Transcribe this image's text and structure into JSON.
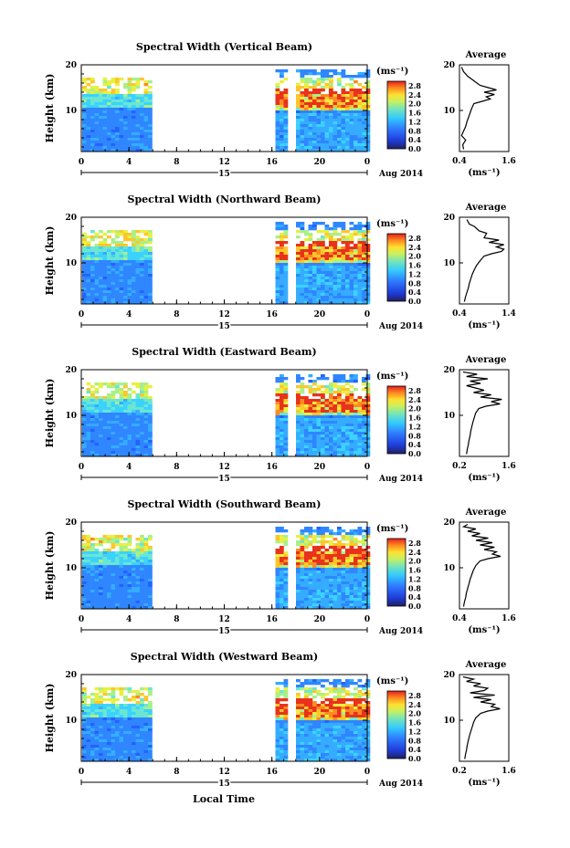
{
  "chart_data": {
    "type": "heatmap",
    "common": {
      "ylabel": "Height (km)",
      "y_ticks": [
        "20",
        "10"
      ],
      "x_ticks": [
        "0",
        "4",
        "8",
        "12",
        "16",
        "20",
        "0"
      ],
      "x_ticks_values": [
        0,
        4,
        8,
        12,
        16,
        20,
        24
      ],
      "xlim": [
        0,
        24
      ],
      "ylim": [
        1,
        20
      ],
      "date_day": "15",
      "date_month_year": "Aug 2014",
      "colorbar_unit": "(ms⁻¹)",
      "colorbar_ticks": [
        "2.8",
        "2.4",
        "2.0",
        "1.6",
        "1.2",
        "0.8",
        "0.4",
        "0.0"
      ],
      "colorbar_values": [
        2.8,
        2.4,
        2.0,
        1.6,
        1.2,
        0.8,
        0.4,
        0.0
      ],
      "profile_title": "Average",
      "profile_xlabel": "(ms⁻¹)",
      "data_gap_hours": [
        5.7,
        16.2
      ],
      "xlabel": "Local Time"
    },
    "panels": [
      {
        "title": "Spectral Width (Vertical Beam)",
        "profile_xticks": [
          "0.4",
          "1.6"
        ],
        "profile_xlim": [
          0.4,
          1.6
        ],
        "profile": [
          [
            1.5,
            0.5
          ],
          [
            2.5,
            0.48
          ],
          [
            3.5,
            0.55
          ],
          [
            4.5,
            0.45
          ],
          [
            5.5,
            0.5
          ],
          [
            6.5,
            0.55
          ],
          [
            7.5,
            0.58
          ],
          [
            8.5,
            0.62
          ],
          [
            9.5,
            0.66
          ],
          [
            10.5,
            0.7
          ],
          [
            11.5,
            0.75
          ],
          [
            12.0,
            0.95
          ],
          [
            12.5,
            1.15
          ],
          [
            13.0,
            1.05
          ],
          [
            13.5,
            1.25
          ],
          [
            14.0,
            1.0
          ],
          [
            14.5,
            1.3
          ],
          [
            15.0,
            1.1
          ],
          [
            15.5,
            0.9
          ],
          [
            16.5,
            0.75
          ],
          [
            17.5,
            0.6
          ],
          [
            18.5,
            0.5
          ],
          [
            19.5,
            0.45
          ]
        ]
      },
      {
        "title": "Spectral Width (Northward Beam)",
        "profile_xticks": [
          "0.4",
          "1.4"
        ],
        "profile_xlim": [
          0.4,
          1.4
        ],
        "profile": [
          [
            1.5,
            0.5
          ],
          [
            2.5,
            0.52
          ],
          [
            3.5,
            0.55
          ],
          [
            4.5,
            0.58
          ],
          [
            5.5,
            0.6
          ],
          [
            6.5,
            0.63
          ],
          [
            7.5,
            0.66
          ],
          [
            8.5,
            0.7
          ],
          [
            9.5,
            0.75
          ],
          [
            10.5,
            0.82
          ],
          [
            11.5,
            0.9
          ],
          [
            12.0,
            1.05
          ],
          [
            12.5,
            1.25
          ],
          [
            13.0,
            1.3
          ],
          [
            13.5,
            1.15
          ],
          [
            14.0,
            1.3
          ],
          [
            14.5,
            1.0
          ],
          [
            15.0,
            1.2
          ],
          [
            15.5,
            0.9
          ],
          [
            16.5,
            0.95
          ],
          [
            17.0,
            0.8
          ],
          [
            18.0,
            0.7
          ],
          [
            18.5,
            0.6
          ],
          [
            19.5,
            0.55
          ]
        ]
      },
      {
        "title": "Spectral Width (Eastward Beam)",
        "profile_xticks": [
          "0.2",
          "1.6"
        ],
        "profile_xlim": [
          0.2,
          1.6
        ],
        "profile": [
          [
            1.5,
            0.4
          ],
          [
            2.5,
            0.42
          ],
          [
            3.5,
            0.45
          ],
          [
            4.5,
            0.47
          ],
          [
            5.5,
            0.5
          ],
          [
            6.5,
            0.52
          ],
          [
            7.5,
            0.55
          ],
          [
            8.5,
            0.58
          ],
          [
            9.5,
            0.62
          ],
          [
            10.5,
            0.66
          ],
          [
            11.5,
            0.75
          ],
          [
            12.0,
            0.95
          ],
          [
            12.5,
            1.35
          ],
          [
            13.0,
            1.1
          ],
          [
            13.5,
            1.4
          ],
          [
            14.0,
            0.8
          ],
          [
            14.5,
            1.1
          ],
          [
            15.0,
            0.6
          ],
          [
            15.5,
            0.9
          ],
          [
            16.5,
            0.4
          ],
          [
            17.0,
            0.8
          ],
          [
            17.5,
            0.5
          ],
          [
            18.0,
            1.0
          ],
          [
            18.5,
            0.4
          ],
          [
            19.0,
            0.7
          ],
          [
            19.5,
            0.3
          ]
        ]
      },
      {
        "title": "Spectral Width (Southward Beam)",
        "profile_xticks": [
          "0.4",
          "1.6"
        ],
        "profile_xlim": [
          0.4,
          1.6
        ],
        "profile": [
          [
            1.5,
            0.5
          ],
          [
            2.5,
            0.52
          ],
          [
            3.5,
            0.55
          ],
          [
            4.5,
            0.57
          ],
          [
            5.5,
            0.6
          ],
          [
            6.5,
            0.63
          ],
          [
            7.5,
            0.66
          ],
          [
            8.5,
            0.7
          ],
          [
            9.5,
            0.74
          ],
          [
            10.5,
            0.8
          ],
          [
            11.5,
            0.9
          ],
          [
            12.0,
            1.1
          ],
          [
            12.5,
            1.4
          ],
          [
            13.0,
            1.2
          ],
          [
            13.5,
            1.3
          ],
          [
            14.0,
            1.0
          ],
          [
            14.5,
            1.25
          ],
          [
            15.0,
            0.9
          ],
          [
            15.5,
            1.2
          ],
          [
            16.0,
            0.8
          ],
          [
            16.5,
            1.1
          ],
          [
            17.0,
            0.7
          ],
          [
            17.5,
            0.9
          ],
          [
            18.0,
            0.6
          ],
          [
            18.5,
            0.8
          ],
          [
            19.0,
            0.5
          ],
          [
            19.5,
            0.6
          ]
        ]
      },
      {
        "title": "Spectral Width (Westward Beam)",
        "profile_xticks": [
          "0.2",
          "1.6"
        ],
        "profile_xlim": [
          0.2,
          1.6
        ],
        "profile": [
          [
            1.5,
            0.35
          ],
          [
            2.5,
            0.37
          ],
          [
            3.5,
            0.4
          ],
          [
            4.5,
            0.42
          ],
          [
            5.5,
            0.45
          ],
          [
            6.5,
            0.48
          ],
          [
            7.5,
            0.52
          ],
          [
            8.5,
            0.56
          ],
          [
            9.5,
            0.6
          ],
          [
            10.5,
            0.66
          ],
          [
            11.5,
            0.8
          ],
          [
            12.0,
            1.0
          ],
          [
            12.5,
            1.35
          ],
          [
            13.0,
            1.1
          ],
          [
            13.5,
            1.2
          ],
          [
            14.0,
            0.8
          ],
          [
            14.5,
            1.1
          ],
          [
            15.0,
            0.6
          ],
          [
            15.5,
            1.2
          ],
          [
            16.0,
            0.5
          ],
          [
            16.5,
            0.9
          ],
          [
            17.0,
            1.0
          ],
          [
            17.5,
            0.6
          ],
          [
            18.0,
            0.8
          ],
          [
            18.5,
            0.4
          ],
          [
            19.0,
            0.6
          ],
          [
            19.5,
            0.3
          ]
        ]
      }
    ]
  }
}
